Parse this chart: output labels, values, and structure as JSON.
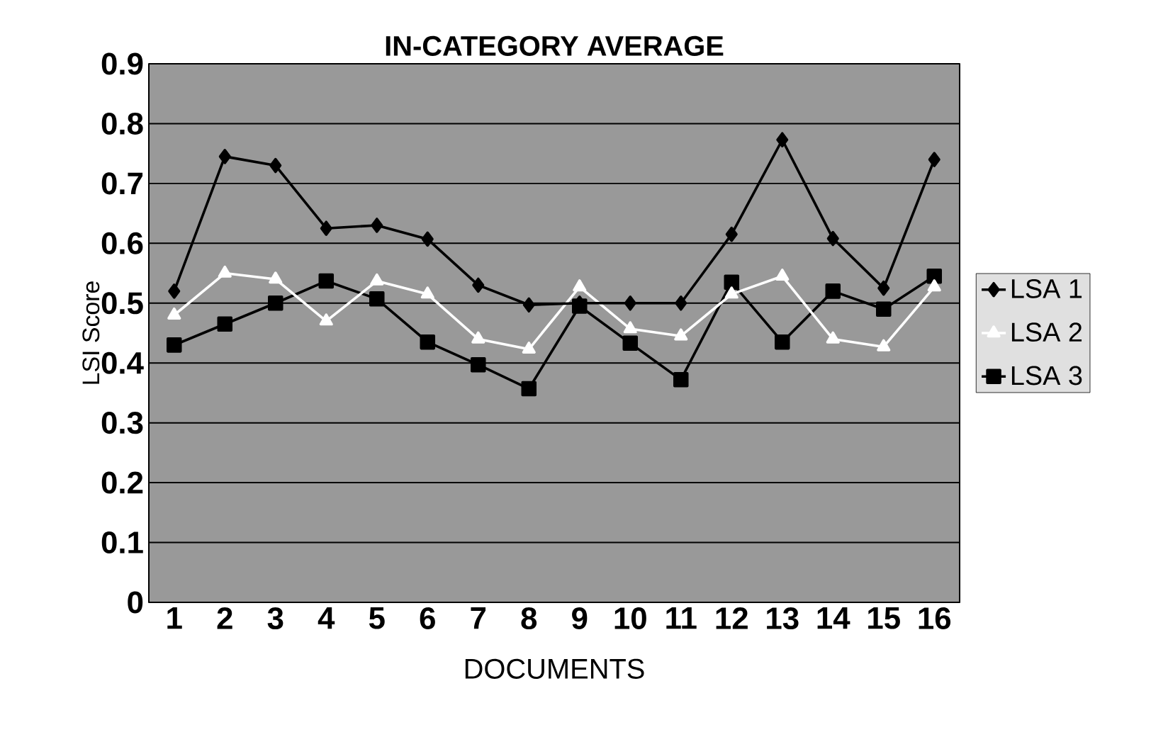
{
  "chart_data": {
    "type": "line",
    "title": "IN-CATEGORY AVERAGE",
    "xlabel": "DOCUMENTS",
    "ylabel": "LSI Score",
    "categories": [
      "1",
      "2",
      "3",
      "4",
      "5",
      "6",
      "7",
      "8",
      "9",
      "10",
      "11",
      "12",
      "13",
      "14",
      "15",
      "16"
    ],
    "series": [
      {
        "name": "LSA 1",
        "color": "#000000",
        "marker": "diamond",
        "values": [
          0.52,
          0.745,
          0.73,
          0.625,
          0.63,
          0.607,
          0.53,
          0.497,
          0.5,
          0.5,
          0.5,
          0.615,
          0.773,
          0.608,
          0.525,
          0.74
        ]
      },
      {
        "name": "LSA 2",
        "color": "#ffffff",
        "marker": "triangle",
        "values": [
          0.48,
          0.55,
          0.54,
          0.47,
          0.537,
          0.515,
          0.44,
          0.423,
          0.527,
          0.457,
          0.445,
          0.515,
          0.545,
          0.44,
          0.427,
          0.527
        ]
      },
      {
        "name": "LSA 3",
        "color": "#000000",
        "marker": "square",
        "values": [
          0.43,
          0.465,
          0.5,
          0.537,
          0.507,
          0.435,
          0.397,
          0.357,
          0.495,
          0.433,
          0.372,
          0.535,
          0.435,
          0.52,
          0.49,
          0.545
        ]
      }
    ],
    "ylim": [
      0,
      0.9
    ],
    "yticks": [
      0,
      0.1,
      0.2,
      0.3,
      0.4,
      0.5,
      0.6,
      0.7,
      0.8,
      0.9
    ],
    "grid": "y",
    "legend": "right",
    "line_style": "solid"
  }
}
